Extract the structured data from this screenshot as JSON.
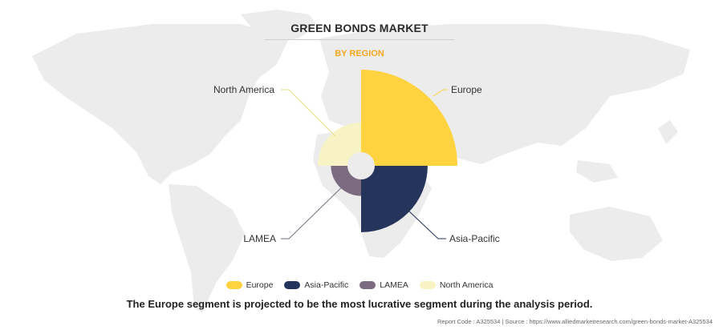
{
  "title": "GREEN BONDS MARKET",
  "subtitle": "BY REGION",
  "caption": "The Europe segment is projected to be the most lucrative segment during the analysis period.",
  "footer": {
    "report_code": "Report Code : A325534",
    "separator": "|",
    "source": "Source : https://www.alliedmarketresearch.com/green-bonds-market-A325534"
  },
  "chart_data": {
    "type": "pie",
    "variant": "nightingale-rose",
    "title": "GREEN BONDS MARKET",
    "subtitle": "BY REGION",
    "categories": [
      "Europe",
      "Asia-Pacific",
      "LAMEA",
      "North America"
    ],
    "relative_magnitude": [
      1.0,
      0.64,
      0.2,
      0.36
    ],
    "colors": [
      "#FFD23F",
      "#24345A",
      "#7A6B80",
      "#F8F3C4"
    ],
    "legend": {
      "position": "bottom",
      "entries": [
        "Europe",
        "Asia-Pacific",
        "LAMEA",
        "North America"
      ]
    }
  }
}
